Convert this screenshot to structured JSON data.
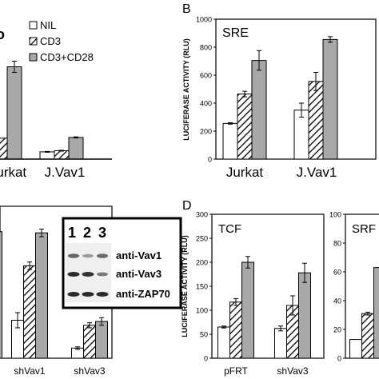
{
  "panels": {
    "a": {
      "legend": {
        "nil": "NIL",
        "cd3": "CD3",
        "cd3cd28": "CD3+CD28"
      },
      "tick_labels": [
        "Jurkat",
        "J.Vav1"
      ]
    },
    "b": {
      "letter": "B",
      "inset_title": "SRE",
      "ylabel": "LUCIFERASE ACTIVITY (RLU)"
    },
    "c": {
      "blot_lanes": [
        "1",
        "2",
        "3"
      ],
      "blot_labels": [
        "anti-Vav1",
        "anti-Vav3",
        "anti-ZAP70"
      ],
      "tick_labels": [
        "shVav1",
        "shVav3"
      ]
    },
    "d": {
      "letter": "D",
      "inset_title": "TCF",
      "ylabel": "LUCIFERASE ACTIVITY (RLU)"
    },
    "e": {
      "inset_title": "SRF"
    }
  },
  "chart_data": [
    {
      "panel": "A",
      "type": "bar",
      "categories": [
        "Jurkat",
        "J.Vav1"
      ],
      "series": [
        {
          "name": "NIL",
          "values": [
            null,
            52
          ],
          "errors": [
            null,
            3
          ]
        },
        {
          "name": "CD3",
          "values": [
            150,
            60
          ],
          "errors": [
            null,
            3
          ]
        },
        {
          "name": "CD3+CD28",
          "values": [
            660,
            155
          ],
          "errors": [
            40,
            4
          ]
        }
      ],
      "ylim": [
        0,
        1000
      ],
      "note": "left part of panel cropped"
    },
    {
      "panel": "B",
      "type": "bar",
      "title": "SRE",
      "categories": [
        "Jurkat",
        "J.Vav1"
      ],
      "series": [
        {
          "name": "NIL",
          "values": [
            255,
            350
          ],
          "errors": [
            5,
            50
          ]
        },
        {
          "name": "CD3",
          "values": [
            465,
            555
          ],
          "errors": [
            20,
            65
          ]
        },
        {
          "name": "CD3+CD28",
          "values": [
            705,
            855
          ],
          "errors": [
            70,
            20
          ]
        }
      ],
      "yticks": [
        0,
        200,
        400,
        600,
        800,
        1000
      ],
      "ylim": [
        0,
        1000
      ],
      "ylabel": "LUCIFERASE ACTIVITY (RLU)"
    },
    {
      "panel": "C",
      "type": "bar",
      "categories": [
        "",
        "shVav1",
        "shVav3"
      ],
      "series": [
        {
          "name": "NIL",
          "values": [
            null,
            30,
            8
          ],
          "errors": [
            null,
            6,
            1
          ]
        },
        {
          "name": "CD3",
          "values": [
            null,
            73,
            26
          ],
          "errors": [
            null,
            3,
            2
          ]
        },
        {
          "name": "CD3+CD28",
          "values": [
            100,
            99,
            29
          ],
          "errors": [
            null,
            3,
            3
          ]
        }
      ],
      "ylim": [
        0,
        120
      ],
      "note": "left part of panel cropped"
    },
    {
      "panel": "D",
      "type": "bar",
      "title": "TCF",
      "categories": [
        "pFRT",
        "shVav3"
      ],
      "series": [
        {
          "name": "NIL",
          "values": [
            65,
            62
          ],
          "errors": [
            2,
            5
          ]
        },
        {
          "name": "CD3",
          "values": [
            117,
            110
          ],
          "errors": [
            7,
            20
          ]
        },
        {
          "name": "CD3+CD28",
          "values": [
            200,
            178
          ],
          "errors": [
            12,
            20
          ]
        }
      ],
      "yticks": [
        0,
        50,
        100,
        150,
        200,
        250,
        300
      ],
      "ylim": [
        0,
        300
      ],
      "ylabel": "LUCIFERASE ACTIVITY (RLU)"
    },
    {
      "panel": "E",
      "type": "bar",
      "title": "SRF",
      "categories": [
        ""
      ],
      "series": [
        {
          "name": "NIL",
          "values": [
            13
          ]
        },
        {
          "name": "CD3",
          "values": [
            31
          ],
          "errors": [
            1
          ]
        },
        {
          "name": "CD3+CD28",
          "values": [
            63
          ]
        }
      ],
      "yticks": [
        0,
        20,
        40,
        60,
        80,
        100
      ],
      "ylim": [
        0,
        100
      ],
      "note": "right part of panel cropped"
    }
  ]
}
